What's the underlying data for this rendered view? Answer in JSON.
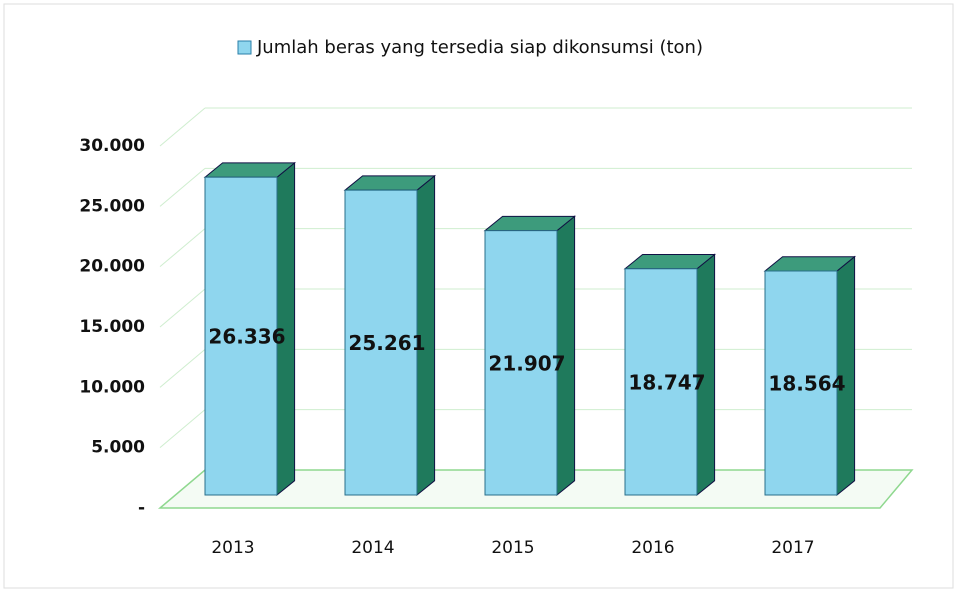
{
  "chart_data": {
    "type": "bar",
    "categories": [
      "2013",
      "2014",
      "2015",
      "2016",
      "2017"
    ],
    "series": [
      {
        "name": "Jumlah beras yang tersedia siap dikonsumsi (ton)",
        "color": "#8fd6ee",
        "values": [
          26336,
          25261,
          21907,
          18747,
          18564
        ],
        "value_labels": [
          "26.336",
          "25.261",
          "21.907",
          "18.747",
          "18.564"
        ]
      }
    ],
    "ylim": [
      0,
      30000
    ],
    "yticks": [
      {
        "value": 0,
        "label": "-"
      },
      {
        "value": 5000,
        "label": "5.000"
      },
      {
        "value": 10000,
        "label": "10.000"
      },
      {
        "value": 15000,
        "label": "15.000"
      },
      {
        "value": 20000,
        "label": "20.000"
      },
      {
        "value": 25000,
        "label": "25.000"
      },
      {
        "value": 30000,
        "label": "30.000"
      }
    ],
    "grid": true,
    "legend": "top"
  }
}
